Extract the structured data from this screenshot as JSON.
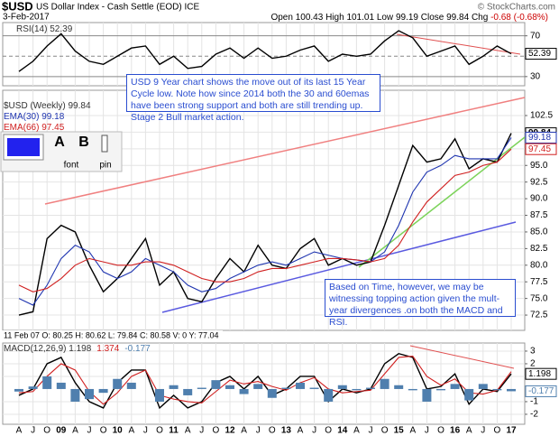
{
  "header": {
    "symbol": "$USD",
    "name": "US Dollar Index - Cash Settle (EOD) ICE",
    "date": "3-Feb-2017",
    "credit": "© StockCharts.com",
    "quote": [
      {
        "label": "Open",
        "value": 100.43
      },
      {
        "label": "High",
        "value": 101.01
      },
      {
        "label": "Low",
        "value": 99.19
      },
      {
        "label": "Close",
        "value": 99.84
      }
    ],
    "change_label": "Chg",
    "change": "-0.68 (-0.68%)"
  },
  "info_bar": "11 Feb 07 O: 80.25 H: 80.62 L: 79.84 C: 80.58 V: 0 Y: 77.04",
  "toolbar": {
    "letters": [
      "A",
      "B"
    ],
    "captions": [
      "font",
      "pin"
    ]
  },
  "annotations": [
    "USD 9 Year chart shows the move out of its last 15 Year Cycle low. Note how since 2014 both the 30 and 60emas have been strong support and both are still trending up.  Stage 2 Bull market action.",
    "Based on Time, however, we may be witnessing topping action given the mult-year divergences .on both the MACD and RSI."
  ],
  "chart_data": [
    {
      "type": "line",
      "legend": "inline",
      "ylim": [
        21,
        83
      ],
      "yticks": [
        30,
        50,
        70
      ],
      "grid": true,
      "series": [
        {
          "name": "RSI(14)",
          "color": "#000000",
          "tag": true,
          "values": [
            35,
            45,
            60,
            72,
            55,
            45,
            42,
            50,
            58,
            60,
            42,
            50,
            38,
            40,
            52,
            58,
            48,
            58,
            48,
            50,
            56,
            60,
            45,
            52,
            50,
            52,
            65,
            75,
            68,
            50,
            55,
            60,
            42,
            50,
            60,
            52.39
          ]
        }
      ]
    },
    {
      "type": "line",
      "legend": "stacked",
      "ylim": [
        70.2,
        106.3
      ],
      "grid": true,
      "yticks": [
        72.5,
        {
          "value": 75,
          "label": "75.0"
        },
        77.5,
        {
          "value": 80,
          "label": "80.0"
        },
        82.5,
        {
          "value": 85,
          "label": "85.0"
        },
        87.5,
        {
          "value": 90,
          "label": "90.0"
        },
        92.5,
        {
          "value": 95,
          "label": "95.0"
        },
        97.5,
        {
          "value": 100,
          "label": "100.0"
        },
        102.5
      ],
      "categories": [
        "A",
        "J",
        "O",
        "09",
        "A",
        "J",
        "O",
        "10",
        "A",
        "J",
        "O",
        "11",
        "A",
        "J",
        "O",
        "12",
        "A",
        "J",
        "O",
        "13",
        "A",
        "J",
        "O",
        "14",
        "A",
        "J",
        "O",
        "15",
        "A",
        "J",
        "O",
        "16",
        "A",
        "J",
        "O",
        "17"
      ],
      "series": [
        {
          "name": "$USD (Weekly)",
          "color": "#000000",
          "tag": true,
          "values": [
            72.5,
            73,
            84,
            86,
            85,
            80,
            76,
            78,
            81,
            84,
            77,
            79,
            75,
            74.5,
            78,
            81,
            79,
            83,
            80,
            79.5,
            82.5,
            84,
            80,
            81,
            80,
            80.5,
            86,
            92,
            98,
            95.5,
            96,
            99,
            94.5,
            96,
            95.5,
            99.84
          ]
        },
        {
          "name": "EMA(30)",
          "color": "#1f35b0",
          "tag": true,
          "values": [
            75,
            74,
            77,
            81,
            83,
            82,
            79,
            78,
            79,
            81,
            80,
            79,
            77,
            76,
            76.5,
            78,
            79,
            80,
            80.5,
            80,
            81,
            82,
            81.5,
            81,
            80.8,
            80.5,
            82,
            86,
            91,
            94,
            95,
            96.5,
            96,
            96,
            96,
            99.18
          ]
        },
        {
          "name": "EMA(66)",
          "color": "#d02020",
          "tag": true,
          "values": [
            77,
            76,
            76.5,
            78,
            80,
            81,
            80.5,
            80,
            80,
            80.5,
            80.5,
            80,
            79,
            78,
            77.5,
            77.5,
            78,
            79,
            79.5,
            79.5,
            80,
            80.5,
            81,
            81,
            80.8,
            80.5,
            81,
            83,
            86.5,
            89.5,
            91.5,
            93.5,
            94,
            95,
            95.5,
            97.45
          ]
        }
      ]
    },
    {
      "type": "line",
      "legend": "inline",
      "ylim": [
        -2.79,
        3.64
      ],
      "yticks": [
        -2,
        -1,
        1,
        2,
        3
      ],
      "grid": true,
      "series": [
        {
          "name": "MACD(12,26,9)",
          "color": "#000000",
          "tag": true,
          "values": [
            -0.5,
            0,
            2,
            2.5,
            0.5,
            -1,
            -1.5,
            0.5,
            1.5,
            1.5,
            -1.5,
            -0.5,
            -1.5,
            -1,
            0.5,
            1,
            0,
            1,
            -0.5,
            0,
            1,
            1,
            -1,
            0,
            -0.3,
            0,
            2,
            2.8,
            2.5,
            0,
            0.2,
            1.2,
            -1.2,
            0,
            -0.2,
            1.198
          ]
        },
        {
          "color": "#d02020",
          "tag": false,
          "values": [
            -0.3,
            -0.2,
            1,
            2,
            1.5,
            -0.2,
            -1.2,
            -0.3,
            1,
            1.5,
            -0.5,
            -0.8,
            -1,
            -1.1,
            -0.2,
            0.7,
            0.4,
            0.6,
            0.2,
            -0.1,
            0.5,
            0.9,
            0,
            -0.3,
            -0.2,
            -0.1,
            1.2,
            2.5,
            2.6,
            1,
            0.3,
            0.8,
            -0.3,
            -0.4,
            -0.1,
            1.374
          ]
        },
        {
          "color": "#4f7fae",
          "tag": true,
          "kind": "histogram",
          "values": [
            -0.2,
            0.2,
            1,
            0.5,
            -1,
            -0.8,
            -0.3,
            0.8,
            0.5,
            0,
            -1,
            0.3,
            -0.5,
            0.1,
            0.7,
            0.3,
            -0.4,
            0.4,
            -0.7,
            0.1,
            0.5,
            0.1,
            -1,
            0.3,
            -0.1,
            0.1,
            0.8,
            0.3,
            -0.1,
            -1,
            -0.1,
            0.4,
            -0.9,
            0.4,
            -0.1,
            -0.177
          ]
        }
      ]
    }
  ]
}
